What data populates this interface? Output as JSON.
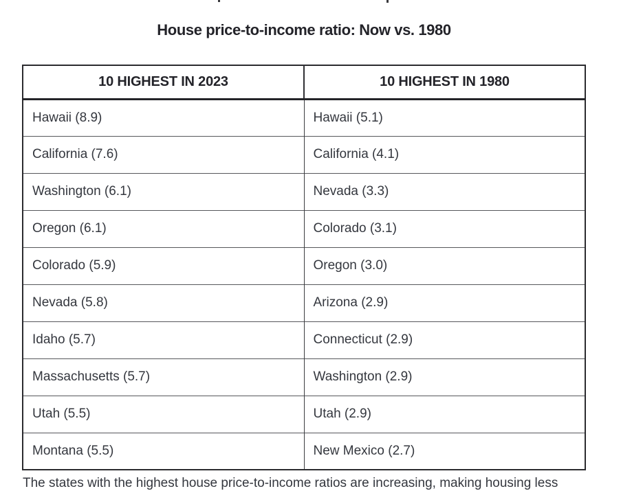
{
  "page": {
    "title": "House price-to-income ratio: Now vs. 1980"
  },
  "table": {
    "headers": [
      "10 HIGHEST IN 2023",
      "10 HIGHEST IN 1980"
    ],
    "rows": [
      {
        "y2023": "Hawaii (8.9)",
        "y1980": "Hawaii (5.1)"
      },
      {
        "y2023": "California (7.6)",
        "y1980": "California (4.1)"
      },
      {
        "y2023": "Washington (6.1)",
        "y1980": "Nevada (3.3)"
      },
      {
        "y2023": "Oregon (6.1)",
        "y1980": "Colorado (3.1)"
      },
      {
        "y2023": "Colorado (5.9)",
        "y1980": "Oregon (3.0)"
      },
      {
        "y2023": "Nevada (5.8)",
        "y1980": "Arizona (2.9)"
      },
      {
        "y2023": "Idaho (5.7)",
        "y1980": "Connecticut (2.9)"
      },
      {
        "y2023": "Massachusetts (5.7)",
        "y1980": "Washington (2.9)"
      },
      {
        "y2023": "Utah (5.5)",
        "y1980": "Utah (2.9)"
      },
      {
        "y2023": "Montana (5.5)",
        "y1980": "New Mexico (2.7)"
      }
    ]
  },
  "footer": {
    "clipped_text": "The states with the highest house price-to-income ratios are increasing, making housing less"
  },
  "colors": {
    "background": "#ffffff",
    "title_text": "#232329",
    "body_text": "#34373e",
    "border_outer": "#2a2a2e",
    "border_header_bottom": "#242428",
    "border_row": "#55565a",
    "border_column_divider": "#3a3b3f"
  },
  "chart_data": {
    "type": "table",
    "title": "House price-to-income ratio: Now vs. 1980",
    "columns": [
      "10 HIGHEST IN 2023",
      "10 HIGHEST IN 1980"
    ],
    "highest_2023": [
      {
        "state": "Hawaii",
        "ratio": 8.9
      },
      {
        "state": "California",
        "ratio": 7.6
      },
      {
        "state": "Washington",
        "ratio": 6.1
      },
      {
        "state": "Oregon",
        "ratio": 6.1
      },
      {
        "state": "Colorado",
        "ratio": 5.9
      },
      {
        "state": "Nevada",
        "ratio": 5.8
      },
      {
        "state": "Idaho",
        "ratio": 5.7
      },
      {
        "state": "Massachusetts",
        "ratio": 5.7
      },
      {
        "state": "Utah",
        "ratio": 5.5
      },
      {
        "state": "Montana",
        "ratio": 5.5
      }
    ],
    "highest_1980": [
      {
        "state": "Hawaii",
        "ratio": 5.1
      },
      {
        "state": "California",
        "ratio": 4.1
      },
      {
        "state": "Nevada",
        "ratio": 3.3
      },
      {
        "state": "Colorado",
        "ratio": 3.1
      },
      {
        "state": "Oregon",
        "ratio": 3.0
      },
      {
        "state": "Arizona",
        "ratio": 2.9
      },
      {
        "state": "Connecticut",
        "ratio": 2.9
      },
      {
        "state": "Washington",
        "ratio": 2.9
      },
      {
        "state": "Utah",
        "ratio": 2.9
      },
      {
        "state": "New Mexico",
        "ratio": 2.7
      }
    ]
  }
}
